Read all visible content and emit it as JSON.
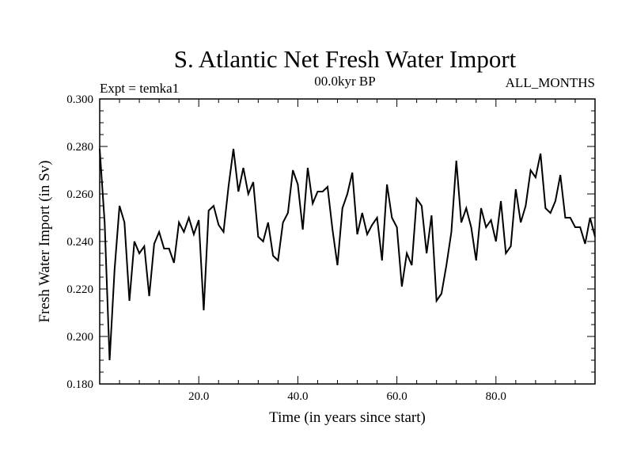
{
  "chart_data": {
    "type": "line",
    "title": "S. Atlantic Net Fresh Water Import",
    "left_header": "Expt = temka1",
    "center_header": "00.0kyr BP",
    "right_header": "ALL_MONTHS",
    "xlabel": "Time (in years since start)",
    "ylabel": "Fresh Water Import (in Sv)",
    "xlim": [
      0,
      100
    ],
    "ylim": [
      0.18,
      0.3
    ],
    "x_ticks": [
      20,
      40,
      60,
      80
    ],
    "x_tick_labels": [
      "20.0",
      "40.0",
      "60.0",
      "80.0"
    ],
    "y_ticks": [
      0.18,
      0.2,
      0.22,
      0.24,
      0.26,
      0.28,
      0.3
    ],
    "y_tick_labels": [
      "0.180",
      "0.200",
      "0.220",
      "0.240",
      "0.260",
      "0.280",
      "0.300"
    ],
    "series": [
      {
        "name": "Fresh Water Import",
        "color": "#000000",
        "x": [
          0,
          1,
          2,
          3,
          4,
          5,
          6,
          7,
          8,
          9,
          10,
          11,
          12,
          13,
          14,
          15,
          16,
          17,
          18,
          19,
          20,
          21,
          22,
          23,
          24,
          25,
          26,
          27,
          28,
          29,
          30,
          31,
          32,
          33,
          34,
          35,
          36,
          37,
          38,
          39,
          40,
          41,
          42,
          43,
          44,
          45,
          46,
          47,
          48,
          49,
          50,
          51,
          52,
          53,
          54,
          55,
          56,
          57,
          58,
          59,
          60,
          61,
          62,
          63,
          64,
          65,
          66,
          67,
          68,
          69,
          70,
          71,
          72,
          73,
          74,
          75,
          76,
          77,
          78,
          79,
          80,
          81,
          82,
          83,
          84,
          85,
          86,
          87,
          88,
          89,
          90,
          91,
          92,
          93,
          94,
          95,
          96,
          97,
          98,
          99,
          100
        ],
        "values": [
          0.279,
          0.248,
          0.19,
          0.228,
          0.255,
          0.248,
          0.215,
          0.24,
          0.235,
          0.238,
          0.217,
          0.239,
          0.244,
          0.237,
          0.237,
          0.231,
          0.248,
          0.244,
          0.25,
          0.243,
          0.249,
          0.211,
          0.253,
          0.255,
          0.247,
          0.244,
          0.263,
          0.279,
          0.261,
          0.271,
          0.26,
          0.265,
          0.242,
          0.24,
          0.248,
          0.234,
          0.232,
          0.248,
          0.252,
          0.27,
          0.264,
          0.245,
          0.271,
          0.256,
          0.261,
          0.261,
          0.263,
          0.245,
          0.23,
          0.254,
          0.26,
          0.269,
          0.243,
          0.252,
          0.243,
          0.247,
          0.25,
          0.232,
          0.264,
          0.25,
          0.246,
          0.221,
          0.235,
          0.23,
          0.258,
          0.255,
          0.235,
          0.251,
          0.215,
          0.218,
          0.23,
          0.244,
          0.274,
          0.248,
          0.254,
          0.246,
          0.232,
          0.254,
          0.246,
          0.249,
          0.24,
          0.257,
          0.235,
          0.238,
          0.262,
          0.248,
          0.255,
          0.27,
          0.267,
          0.277,
          0.254,
          0.252,
          0.257,
          0.268,
          0.25,
          0.25,
          0.246,
          0.246,
          0.239,
          0.25,
          0.242
        ]
      }
    ]
  }
}
